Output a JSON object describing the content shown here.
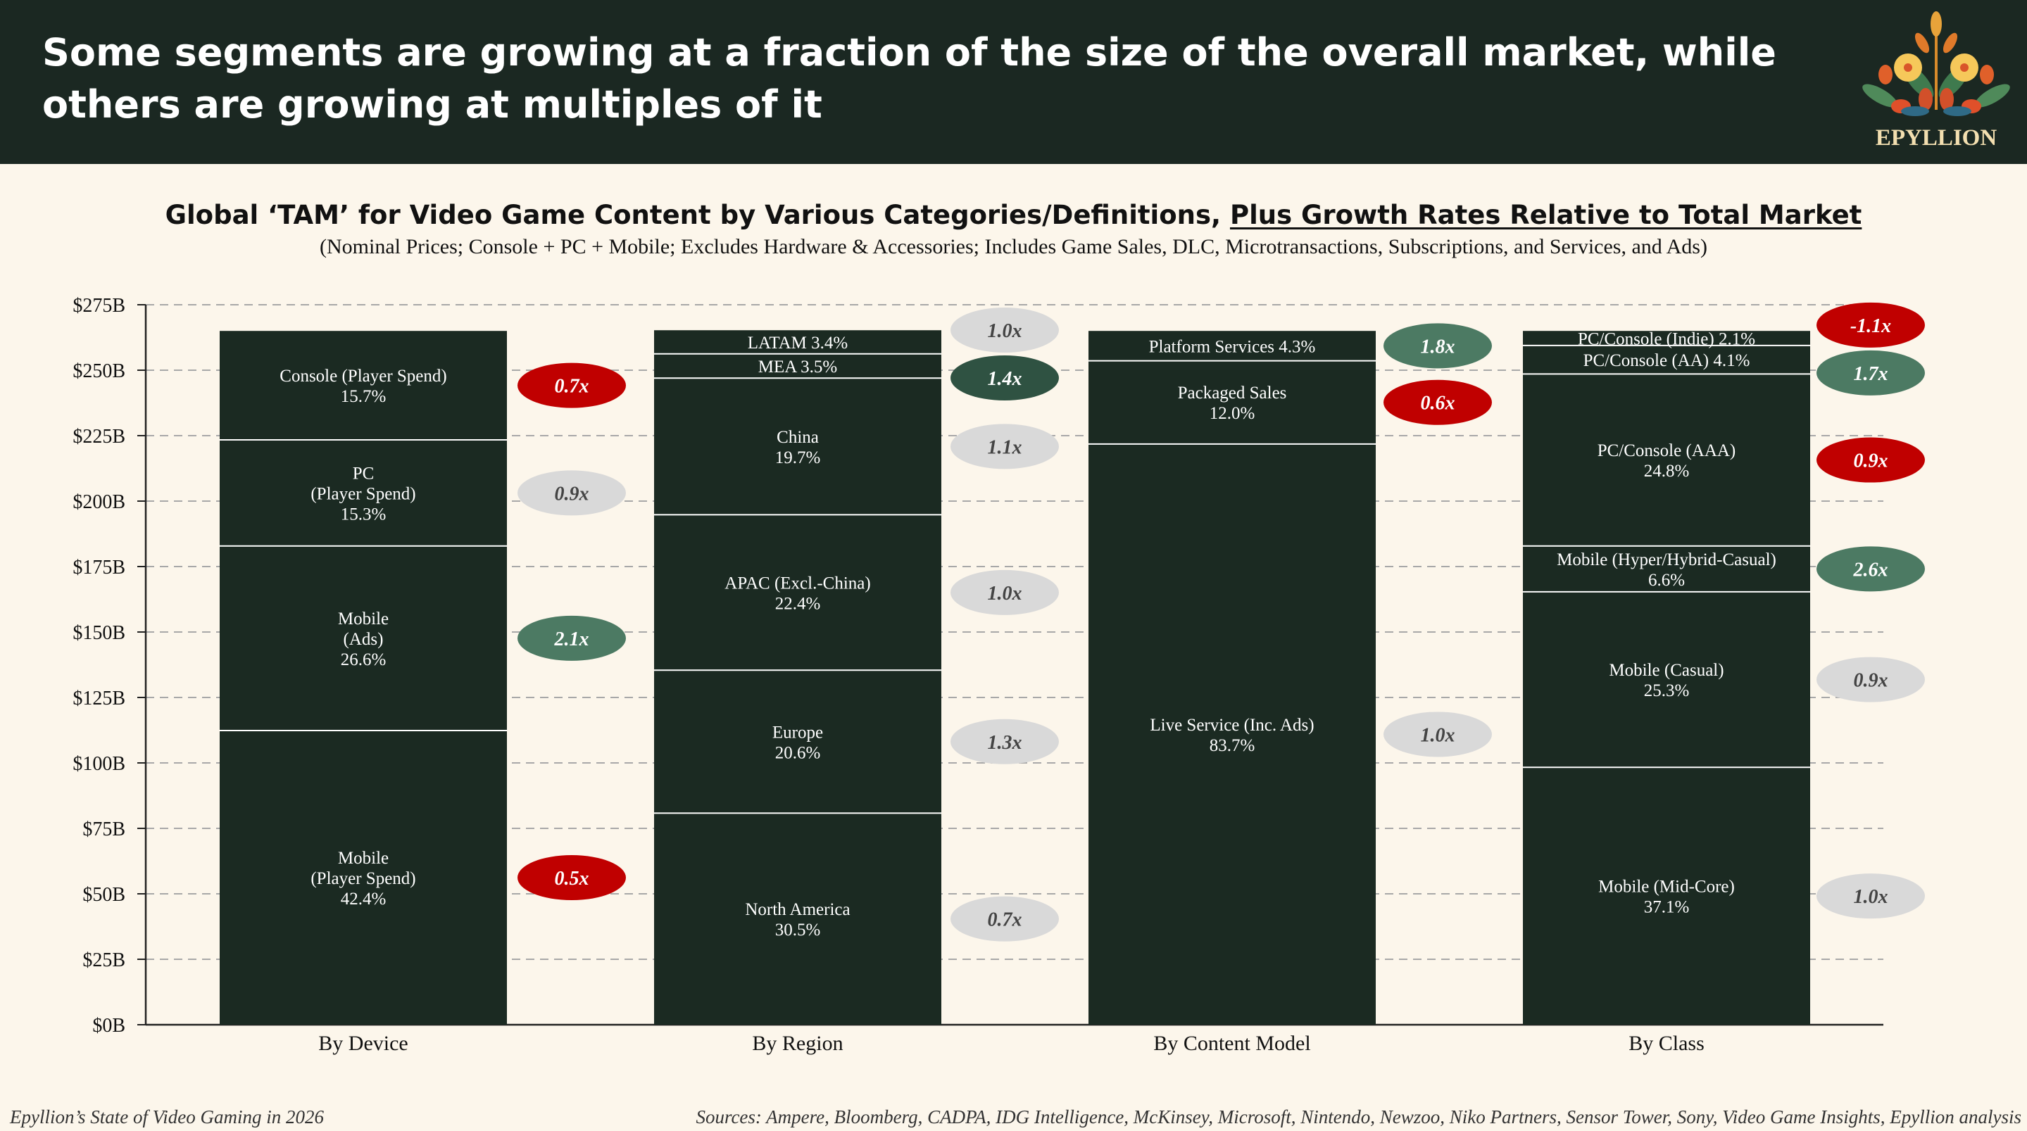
{
  "header": {
    "title": "Some segments are growing at a fraction of the size of the overall market, while others are growing at multiples of it",
    "logo_text": "EPYLLION"
  },
  "footer": {
    "left": "Epyllion’s State of Video Gaming in 2026",
    "right": "Sources: Ampere, Bloomberg, CADPA, IDG Intelligence, McKinsey, Microsoft, Nintendo, Newzoo, Niko Partners, Sensor Tower, Sony, Video Game Insights, Epyllion analysis"
  },
  "colors": {
    "bar": "#1b2a22",
    "header": "#1b2822",
    "background": "#fcf6eb",
    "badge_red": "#c00000",
    "badge_green": "#4c7a63",
    "badge_dark_green": "#2f5242",
    "badge_grey": "#d9d9d9"
  },
  "chart_data": {
    "type": "bar",
    "stacked": true,
    "title_main": "Global ‘TAM’ for Video Game Content by Various Categories/Definitions, ",
    "title_underlined": "Plus Growth Rates Relative to Total Market",
    "subtitle": "(Nominal Prices; Console + PC + Mobile; Excludes Hardware & Accessories; Includes Game Sales, DLC, Microtransactions, Subscriptions, and Services, and Ads)",
    "total_value": 265,
    "ylim": [
      0,
      275
    ],
    "yticks": [
      "$0B",
      "$25B",
      "$50B",
      "$75B",
      "$100B",
      "$125B",
      "$150B",
      "$175B",
      "$200B",
      "$225B",
      "$250B",
      "$275B"
    ],
    "ytick_values": [
      0,
      25,
      50,
      75,
      100,
      125,
      150,
      175,
      200,
      225,
      250,
      275
    ],
    "grid": true,
    "categories": [
      "By Device",
      "By Region",
      "By Content Model",
      "By Class"
    ],
    "groups": [
      {
        "category": "By Device",
        "segments": [
          {
            "label": [
              "Mobile",
              "(Player Spend)",
              "42.4%"
            ],
            "share": 42.4,
            "growth": "0.5x",
            "badge": "red"
          },
          {
            "label": [
              "Mobile",
              "(Ads)",
              "26.6%"
            ],
            "share": 26.6,
            "growth": "2.1x",
            "badge": "green"
          },
          {
            "label": [
              "PC",
              "(Player Spend)",
              "15.3%"
            ],
            "share": 15.3,
            "growth": "0.9x",
            "badge": "grey"
          },
          {
            "label": [
              "Console (Player Spend)",
              "15.7%"
            ],
            "share": 15.7,
            "growth": "0.7x",
            "badge": "red"
          }
        ]
      },
      {
        "category": "By Region",
        "segments": [
          {
            "label": [
              "North America",
              "30.5%"
            ],
            "share": 30.5,
            "growth": "0.7x",
            "badge": "grey"
          },
          {
            "label": [
              "Europe",
              "20.6%"
            ],
            "share": 20.6,
            "growth": "1.3x",
            "badge": "grey"
          },
          {
            "label": [
              "APAC (Excl.-China)",
              "22.4%"
            ],
            "share": 22.4,
            "growth": "1.0x",
            "badge": "grey"
          },
          {
            "label": [
              "China",
              "19.7%"
            ],
            "share": 19.7,
            "growth": "1.1x",
            "badge": "grey"
          },
          {
            "label": [
              "MEA 3.5%"
            ],
            "share": 3.5,
            "growth": "1.4x",
            "badge": "dark_green"
          },
          {
            "label": [
              "LATAM 3.4%"
            ],
            "share": 3.4,
            "growth": "1.0x",
            "badge": "grey"
          }
        ]
      },
      {
        "category": "By Content Model",
        "segments": [
          {
            "label": [
              "Live Service (Inc. Ads)",
              "83.7%"
            ],
            "share": 83.7,
            "growth": "1.0x",
            "badge": "grey"
          },
          {
            "label": [
              "Packaged Sales",
              "12.0%"
            ],
            "share": 12.0,
            "growth": "0.6x",
            "badge": "red"
          },
          {
            "label": [
              "Platform Services 4.3%"
            ],
            "share": 4.3,
            "growth": "1.8x",
            "badge": "green"
          }
        ]
      },
      {
        "category": "By Class",
        "segments": [
          {
            "label": [
              "Mobile (Mid-Core)",
              "37.1%"
            ],
            "share": 37.1,
            "growth": "1.0x",
            "badge": "grey"
          },
          {
            "label": [
              "Mobile (Casual)",
              "25.3%"
            ],
            "share": 25.3,
            "growth": "0.9x",
            "badge": "grey"
          },
          {
            "label": [
              "Mobile (Hyper/Hybrid-Casual)",
              "6.6%"
            ],
            "share": 6.6,
            "growth": "2.6x",
            "badge": "green"
          },
          {
            "label": [
              "PC/Console (AAA)",
              "24.8%"
            ],
            "share": 24.8,
            "growth": "0.9x",
            "badge": "red"
          },
          {
            "label": [
              "PC/Console (AA) 4.1%"
            ],
            "share": 4.1,
            "growth": "1.7x",
            "badge": "green"
          },
          {
            "label": [
              "PC/Console (Indie) 2.1%"
            ],
            "share": 2.1,
            "growth": "-1.1x",
            "badge": "red"
          }
        ]
      }
    ]
  }
}
